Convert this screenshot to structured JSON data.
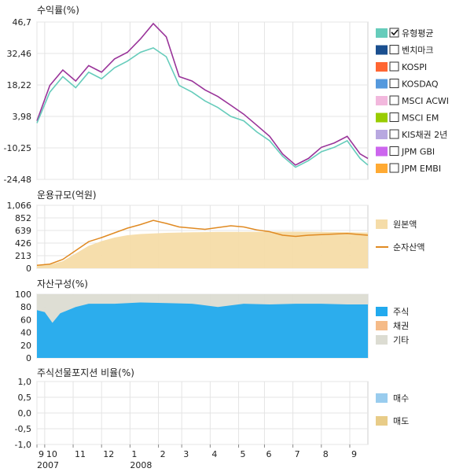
{
  "chart_data": [
    {
      "type": "line",
      "title": "수익률(%)",
      "y_ticks": [
        "46,7",
        "32,46",
        "18,22",
        "3,98",
        "-10,25",
        "-24,48"
      ],
      "y_tick_values": [
        46.7,
        32.46,
        18.22,
        3.98,
        -10.25,
        -24.48
      ],
      "ylim": [
        -24.48,
        46.7
      ],
      "grid": true,
      "legend_position": "right",
      "legend": [
        {
          "label": "유형평균",
          "color": "#66ccbb",
          "checked": true
        },
        {
          "label": "벤치마크",
          "color": "#1a4f8f",
          "checked": false
        },
        {
          "label": "KOSPI",
          "color": "#ff6633",
          "checked": false
        },
        {
          "label": "KOSDAQ",
          "color": "#5599dd",
          "checked": false
        },
        {
          "label": "MSCI ACWI",
          "color": "#f2b8dd",
          "checked": false
        },
        {
          "label": "MSCI EM",
          "color": "#99cc00",
          "checked": false
        },
        {
          "label": "KIS채권 2년",
          "color": "#b8a8e0",
          "checked": false
        },
        {
          "label": "JPM GBI",
          "color": "#cc66ee",
          "checked": false
        },
        {
          "label": "JPM EMBI",
          "color": "#ffaa33",
          "checked": false
        }
      ],
      "series": [
        {
          "color": "#993399",
          "x": [
            0,
            0.5,
            1,
            1.5,
            2,
            2.5,
            3,
            3.5,
            4,
            4.5,
            5,
            5.5,
            6,
            6.5,
            7,
            7.5,
            8,
            8.5,
            9,
            9.5,
            10,
            10.5,
            11,
            11.5,
            12,
            12.5,
            12.8
          ],
          "y": [
            2,
            18,
            25,
            20,
            27,
            24,
            30,
            33,
            39,
            46,
            40,
            22,
            20,
            16,
            13,
            9,
            5,
            0,
            -5,
            -13,
            -18,
            -15,
            -10,
            -8,
            -5,
            -13,
            -15
          ]
        },
        {
          "color": "#66ccbb",
          "x": [
            0,
            0.5,
            1,
            1.5,
            2,
            2.5,
            3,
            3.5,
            4,
            4.5,
            5,
            5.5,
            6,
            6.5,
            7,
            7.5,
            8,
            8.5,
            9,
            9.5,
            10,
            10.5,
            11,
            11.5,
            12,
            12.5,
            12.8
          ],
          "y": [
            1,
            15,
            22,
            17,
            24,
            21,
            26,
            29,
            33,
            35,
            31,
            18,
            15,
            11,
            8,
            4,
            2,
            -3,
            -7,
            -14,
            -19,
            -16,
            -12,
            -10,
            -7,
            -15,
            -18
          ]
        }
      ]
    },
    {
      "type": "area",
      "title": "운용규모(억원)",
      "y_ticks": [
        "1,066",
        "852",
        "639",
        "426",
        "213",
        "0"
      ],
      "y_tick_values": [
        1066,
        852,
        639,
        426,
        213,
        0
      ],
      "ylim": [
        0,
        1066
      ],
      "grid": true,
      "legend_position": "right",
      "legend": [
        {
          "label": "원본액",
          "color": "#f5dca8",
          "kind": "area"
        },
        {
          "label": "순자산액",
          "color": "#e08a22",
          "kind": "line"
        }
      ],
      "series": [
        {
          "color": "#f5dca8",
          "x": [
            0,
            0.5,
            1,
            1.5,
            2,
            2.5,
            3,
            3.5,
            4,
            4.5,
            5,
            6,
            7,
            8,
            9,
            10,
            11,
            12,
            12.8
          ],
          "y": [
            50,
            60,
            120,
            250,
            380,
            460,
            520,
            560,
            580,
            590,
            600,
            610,
            615,
            615,
            620,
            620,
            615,
            610,
            605
          ]
        },
        {
          "color": "#e08a22",
          "x": [
            0,
            0.5,
            1,
            1.5,
            2,
            2.5,
            3,
            3.5,
            4,
            4.5,
            5,
            5.5,
            6,
            6.5,
            7,
            7.5,
            8,
            8.5,
            9,
            9.5,
            10,
            10.5,
            11,
            11.5,
            12,
            12.5,
            12.8
          ],
          "y": [
            50,
            70,
            150,
            300,
            450,
            520,
            600,
            680,
            740,
            810,
            760,
            700,
            680,
            660,
            690,
            720,
            700,
            650,
            620,
            560,
            540,
            560,
            570,
            580,
            590,
            570,
            560
          ]
        }
      ]
    },
    {
      "type": "area",
      "title": "자산구성(%)",
      "y_ticks": [
        "100",
        "80",
        "60",
        "40",
        "20",
        "0"
      ],
      "y_tick_values": [
        100,
        80,
        60,
        40,
        20,
        0
      ],
      "ylim": [
        0,
        100
      ],
      "grid": true,
      "legend_position": "right",
      "legend": [
        {
          "label": "주식",
          "color": "#22aaee"
        },
        {
          "label": "채권",
          "color": "#f5bb88"
        },
        {
          "label": "기타",
          "color": "#dcdcd2"
        }
      ],
      "series": [
        {
          "color": "#22aaee",
          "x": [
            0,
            0.3,
            0.6,
            0.9,
            1.2,
            1.5,
            2,
            3,
            4,
            5,
            6,
            7,
            8,
            9,
            10,
            11,
            12,
            12.8
          ],
          "y": [
            75,
            72,
            55,
            70,
            75,
            80,
            85,
            85,
            87,
            86,
            85,
            80,
            85,
            84,
            85,
            85,
            84,
            84
          ]
        },
        {
          "color": "#dcdcd2",
          "x": [
            0,
            12.8
          ],
          "y": [
            100,
            100
          ]
        }
      ]
    },
    {
      "type": "bar",
      "title": "주식선물포지션 비율(%)",
      "y_ticks": [
        "1,0",
        "0,5",
        "0,0",
        "-0,5",
        "-1,0"
      ],
      "y_tick_values": [
        1.0,
        0.5,
        0.0,
        -0.5,
        -1.0
      ],
      "ylim": [
        -1.0,
        1.0
      ],
      "grid": true,
      "legend_position": "right",
      "legend": [
        {
          "label": "매수",
          "color": "#99ccee"
        },
        {
          "label": "매도",
          "color": "#e8cc88"
        }
      ],
      "series": []
    }
  ],
  "x_axis": {
    "month_ticks": [
      {
        "label": "9",
        "x": 0
      },
      {
        "label": "10",
        "x": 0.3
      },
      {
        "label": "11",
        "x": 1.4
      },
      {
        "label": "12",
        "x": 2.5
      },
      {
        "label": "1",
        "x": 3.6
      },
      {
        "label": "2",
        "x": 4.7
      },
      {
        "label": "3",
        "x": 5.6
      },
      {
        "label": "4",
        "x": 6.7
      },
      {
        "label": "5",
        "x": 7.8
      },
      {
        "label": "6",
        "x": 8.8
      },
      {
        "label": "7",
        "x": 9.9
      },
      {
        "label": "8",
        "x": 11.0
      },
      {
        "label": "9",
        "x": 12.1
      }
    ],
    "year_labels": [
      {
        "label": "2007",
        "x": 0
      },
      {
        "label": "2008",
        "x": 3.6
      }
    ],
    "xlim": [
      0,
      12.8
    ]
  }
}
